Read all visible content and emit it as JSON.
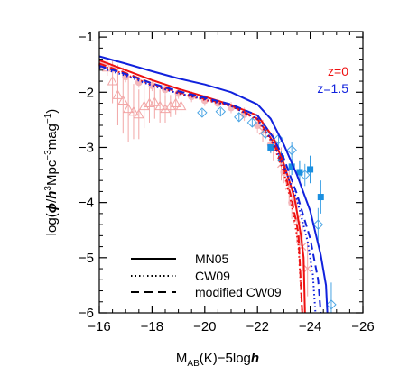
{
  "chart_data": {
    "type": "line",
    "xlim": [
      -16,
      -26
    ],
    "ylim": [
      -6,
      -0.9
    ],
    "x_ticks": [
      -16,
      -18,
      -20,
      -22,
      -24,
      -26
    ],
    "x_tick_labels": [
      "−16",
      "−18",
      "−20",
      "−22",
      "−24",
      "−26"
    ],
    "y_ticks": [
      -6,
      -5,
      -4,
      -3,
      -2,
      -1
    ],
    "y_tick_labels": [
      "−6",
      "−5",
      "−4",
      "−3",
      "−2",
      "−1"
    ],
    "xlabel_main": "M",
    "xlabel_sub": "AB",
    "xlabel_rest": "(K)−5log",
    "xlabel_h": "h",
    "ylabel_pre": "log(",
    "ylabel_phi": "ϕ",
    "ylabel_slash": "/",
    "ylabel_h": "h",
    "ylabel_exp3": "3",
    "ylabel_mid": "Mpc",
    "ylabel_expm3": "−3",
    "ylabel_mag": "mag",
    "ylabel_expm1": "−1",
    "ylabel_post": ")",
    "redshift_labels": [
      {
        "text": "z=0",
        "color": "#ee1111"
      },
      {
        "text": "z=1.5",
        "color": "#1122dd"
      }
    ],
    "legend": [
      {
        "label": "MN05",
        "style": "solid"
      },
      {
        "label": "CW09",
        "style": "dotted"
      },
      {
        "label": "modified CW09",
        "style": "dashed"
      }
    ],
    "series": [
      {
        "redshift": "z=0",
        "style": "solid",
        "color": "#ee1111",
        "points": [
          [
            -16,
            -1.42
          ],
          [
            -17,
            -1.6
          ],
          [
            -18,
            -1.78
          ],
          [
            -19,
            -1.94
          ],
          [
            -20,
            -2.08
          ],
          [
            -21,
            -2.23
          ],
          [
            -22,
            -2.42
          ],
          [
            -22.6,
            -2.82
          ],
          [
            -23,
            -3.3
          ],
          [
            -23.4,
            -3.9
          ],
          [
            -23.65,
            -4.6
          ],
          [
            -23.75,
            -5.0
          ],
          [
            -23.8,
            -6.0
          ]
        ]
      },
      {
        "redshift": "z=0",
        "style": "dotted",
        "color": "#ee1111",
        "points": [
          [
            -16,
            -1.5
          ],
          [
            -17,
            -1.68
          ],
          [
            -18,
            -1.87
          ],
          [
            -19,
            -2.02
          ],
          [
            -20,
            -2.14
          ],
          [
            -21,
            -2.25
          ],
          [
            -22,
            -2.5
          ],
          [
            -22.6,
            -2.95
          ],
          [
            -23,
            -3.45
          ],
          [
            -23.3,
            -4.05
          ],
          [
            -23.55,
            -4.75
          ],
          [
            -23.7,
            -6.0
          ]
        ]
      },
      {
        "redshift": "z=0",
        "style": "dashed",
        "color": "#ee1111",
        "points": [
          [
            -16,
            -1.48
          ],
          [
            -17,
            -1.65
          ],
          [
            -18,
            -1.84
          ],
          [
            -19,
            -2.0
          ],
          [
            -20,
            -2.12
          ],
          [
            -21,
            -2.24
          ],
          [
            -22,
            -2.48
          ],
          [
            -22.6,
            -2.9
          ],
          [
            -23,
            -3.38
          ],
          [
            -23.3,
            -3.95
          ],
          [
            -23.55,
            -4.55
          ],
          [
            -23.7,
            -6.0
          ]
        ]
      },
      {
        "redshift": "z=1.5",
        "style": "solid",
        "color": "#1122dd",
        "points": [
          [
            -16,
            -1.35
          ],
          [
            -17,
            -1.48
          ],
          [
            -18,
            -1.62
          ],
          [
            -19,
            -1.75
          ],
          [
            -20,
            -1.86
          ],
          [
            -21,
            -2.0
          ],
          [
            -22,
            -2.22
          ],
          [
            -22.5,
            -2.48
          ],
          [
            -23,
            -2.95
          ],
          [
            -23.5,
            -3.5
          ],
          [
            -24,
            -4.15
          ],
          [
            -24.4,
            -4.95
          ],
          [
            -24.6,
            -5.5
          ],
          [
            -24.65,
            -6.0
          ]
        ]
      },
      {
        "redshift": "z=1.5",
        "style": "dotted",
        "color": "#1122dd",
        "points": [
          [
            -16,
            -1.55
          ],
          [
            -17,
            -1.7
          ],
          [
            -18,
            -1.88
          ],
          [
            -19,
            -2.02
          ],
          [
            -20,
            -2.13
          ],
          [
            -21,
            -2.25
          ],
          [
            -22,
            -2.48
          ],
          [
            -22.6,
            -2.92
          ],
          [
            -23,
            -3.35
          ],
          [
            -23.5,
            -3.95
          ],
          [
            -23.9,
            -4.7
          ],
          [
            -24.1,
            -5.3
          ],
          [
            -24.2,
            -6.0
          ]
        ]
      },
      {
        "redshift": "z=1.5",
        "style": "dashed",
        "color": "#1122dd",
        "points": [
          [
            -16,
            -1.52
          ],
          [
            -17,
            -1.67
          ],
          [
            -18,
            -1.84
          ],
          [
            -19,
            -1.98
          ],
          [
            -20,
            -2.1
          ],
          [
            -21,
            -2.22
          ],
          [
            -22,
            -2.42
          ],
          [
            -22.6,
            -2.82
          ],
          [
            -23,
            -3.2
          ],
          [
            -23.5,
            -3.85
          ],
          [
            -24,
            -4.65
          ],
          [
            -24.3,
            -5.4
          ],
          [
            -24.4,
            -6.0
          ]
        ]
      }
    ],
    "obs_triangles": {
      "color": "#f2a6a6",
      "points": [
        [
          -16.3,
          -1.55
        ],
        [
          -16.5,
          -1.8
        ],
        [
          -16.7,
          -2.05
        ],
        [
          -16.9,
          -2.15
        ],
        [
          -17.1,
          -2.3
        ],
        [
          -17.3,
          -2.35
        ],
        [
          -17.5,
          -2.4
        ],
        [
          -17.7,
          -2.25
        ],
        [
          -17.9,
          -2.2
        ],
        [
          -18.1,
          -2.18
        ],
        [
          -18.3,
          -2.25
        ],
        [
          -18.5,
          -2.3
        ],
        [
          -18.7,
          -2.25
        ],
        [
          -18.9,
          -2.2
        ],
        [
          -19.1,
          -2.25
        ]
      ],
      "err": [
        0.15,
        0.4,
        0.55,
        0.6,
        0.6,
        0.5,
        0.45,
        0.4,
        0.35,
        0.3,
        0.3,
        0.25,
        0.2,
        0.2,
        0.2
      ]
    },
    "obs_circles": {
      "color": "#f4b8bc",
      "points": [
        [
          -16.1,
          -1.5
        ],
        [
          -16.5,
          -1.58
        ],
        [
          -17.0,
          -1.72
        ],
        [
          -17.5,
          -1.82
        ],
        [
          -18.0,
          -1.88
        ],
        [
          -18.5,
          -1.95
        ],
        [
          -19.0,
          -2.02
        ],
        [
          -19.5,
          -2.08
        ],
        [
          -20.0,
          -2.15
        ],
        [
          -20.5,
          -2.2
        ],
        [
          -21.0,
          -2.28
        ],
        [
          -21.5,
          -2.4
        ],
        [
          -22.0,
          -2.6
        ],
        [
          -22.5,
          -2.95
        ],
        [
          -23.0,
          -3.45
        ],
        [
          -23.3,
          -4.0
        ],
        [
          -23.6,
          -4.7
        ]
      ],
      "err": [
        0.08,
        0.08,
        0.1,
        0.1,
        0.1,
        0.1,
        0.1,
        0.1,
        0.1,
        0.1,
        0.1,
        0.12,
        0.14,
        0.16,
        0.2,
        0.3,
        0.35
      ]
    },
    "obs_crosses": {
      "color": "#f2a6a6",
      "points": [
        [
          -22.2,
          -2.7
        ],
        [
          -22.6,
          -3.0
        ],
        [
          -22.9,
          -3.3
        ],
        [
          -23.2,
          -3.7
        ],
        [
          -23.5,
          -4.3
        ],
        [
          -23.7,
          -4.8
        ],
        [
          -23.9,
          -5.2
        ]
      ],
      "err": [
        0.2,
        0.25,
        0.3,
        0.35,
        0.4,
        0.45,
        0.5
      ]
    },
    "obs_diamonds": {
      "color": "#49a4e4",
      "points": [
        [
          -19.9,
          -2.37
        ],
        [
          -20.6,
          -2.35
        ],
        [
          -21.3,
          -2.45
        ],
        [
          -21.8,
          -2.55
        ],
        [
          -22.3,
          -2.75
        ],
        [
          -22.8,
          -2.85
        ],
        [
          -23.3,
          -3.05
        ],
        [
          -23.8,
          -3.5
        ],
        [
          -24.3,
          -4.4
        ],
        [
          -24.8,
          -5.85
        ]
      ],
      "err": [
        0.06,
        0.06,
        0.07,
        0.08,
        0.1,
        0.12,
        0.15,
        0.2,
        0.3,
        0.4
      ]
    },
    "obs_squares": {
      "color": "#1a8fe0",
      "points": [
        [
          -22.5,
          -3.0
        ],
        [
          -22.9,
          -3.2
        ],
        [
          -23.3,
          -3.35
        ],
        [
          -23.6,
          -3.45
        ],
        [
          -24.0,
          -3.4
        ],
        [
          -24.4,
          -3.9
        ]
      ],
      "err": [
        0.1,
        0.12,
        0.15,
        0.2,
        0.25,
        0.3
      ]
    }
  }
}
